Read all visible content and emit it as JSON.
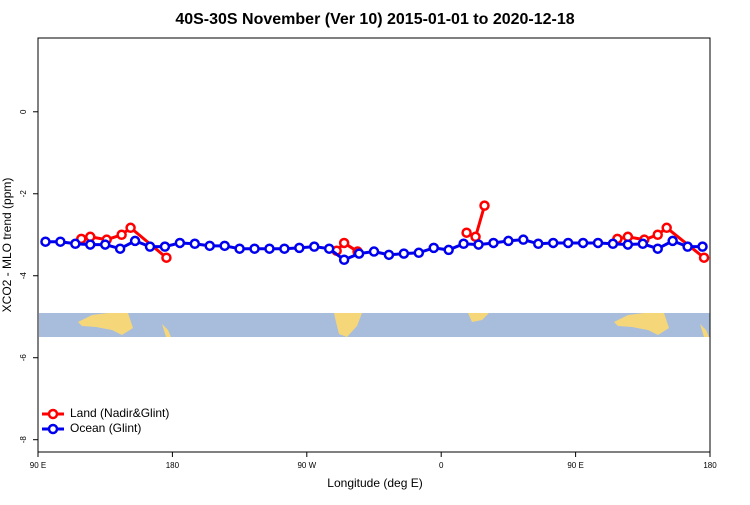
{
  "chart_data": {
    "type": "line",
    "title": "40S-30S November (Ver 10)   2015-01-01 to 2020-12-18",
    "xlabel": "Longitude (deg E)",
    "ylabel": "XCO2 - MLO trend (ppm)",
    "xlim": [
      90,
      540
    ],
    "xticks": [
      {
        "value": 90,
        "label": "90 E"
      },
      {
        "value": 180,
        "label": "180"
      },
      {
        "value": 270,
        "label": "90 W"
      },
      {
        "value": 360,
        "label": "0"
      },
      {
        "value": 450,
        "label": "90 E"
      },
      {
        "value": 540,
        "label": "180"
      }
    ],
    "ylim": [
      -8.3,
      1.8
    ],
    "yticks": [
      0,
      -2,
      -4,
      -6,
      -8
    ],
    "legend": "bottom-left",
    "series": [
      {
        "name": "Land (Nadir&Glint)",
        "color": "#ff0000",
        "x": [
          119,
          125,
          136,
          146,
          152,
          176,
          null,
          290,
          295,
          304,
          null,
          377,
          383,
          389,
          null,
          478,
          485,
          496,
          505,
          511,
          536
        ],
        "values": [
          -3.1,
          -3.05,
          -3.12,
          -3.0,
          -2.83,
          -3.56,
          null,
          -3.39,
          -3.2,
          -3.41,
          null,
          -2.95,
          -3.05,
          -2.29,
          null,
          -3.1,
          -3.05,
          -3.12,
          -3.0,
          -2.83,
          -3.56
        ]
      },
      {
        "name": "Ocean (Glint)",
        "color": "#0000ee",
        "x": [
          95,
          105,
          115,
          125,
          135,
          145,
          155,
          165,
          175,
          185,
          195,
          205,
          215,
          225,
          235,
          245,
          255,
          265,
          275,
          285,
          295,
          305,
          315,
          325,
          335,
          345,
          355,
          365,
          375,
          385,
          395,
          405,
          415,
          425,
          435,
          445,
          455,
          465,
          475,
          485,
          495,
          505,
          515,
          525,
          535
        ],
        "values": [
          -3.17,
          -3.17,
          -3.22,
          -3.24,
          -3.24,
          -3.34,
          -3.15,
          -3.29,
          -3.29,
          -3.2,
          -3.22,
          -3.27,
          -3.27,
          -3.34,
          -3.34,
          -3.34,
          -3.34,
          -3.32,
          -3.29,
          -3.34,
          -3.61,
          -3.46,
          -3.41,
          -3.49,
          -3.46,
          -3.44,
          -3.32,
          -3.37,
          -3.22,
          -3.24,
          -3.2,
          -3.15,
          -3.12,
          -3.22,
          -3.2,
          -3.2,
          -3.2,
          -3.2,
          -3.22,
          -3.24,
          -3.22,
          -3.34,
          -3.15,
          -3.29,
          -3.29
        ]
      }
    ]
  }
}
